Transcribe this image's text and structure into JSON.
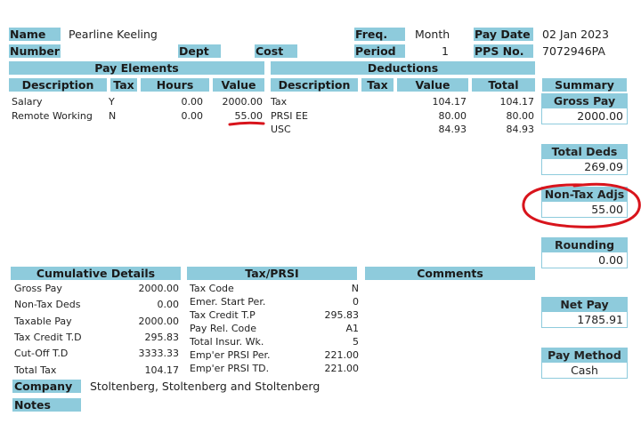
{
  "header": {
    "name_label": "Name",
    "name_value": "Pearline Keeling",
    "freq_label": "Freq.",
    "freq_value": "Month",
    "paydate_label": "Pay Date",
    "paydate_value": "02 Jan 2023",
    "number_label": "Number",
    "dept_label": "Dept",
    "cost_label": "Cost",
    "period_label": "Period",
    "period_value": "1",
    "pps_label": "PPS No.",
    "pps_value": "7072946PA"
  },
  "pay_elements": {
    "title": "Pay Elements",
    "columns": [
      "Description",
      "Tax",
      "Hours",
      "Value"
    ],
    "rows": [
      {
        "description": "Salary",
        "tax": "Y",
        "hours": "0.00",
        "value": "2000.00"
      },
      {
        "description": "Remote Working",
        "tax": "N",
        "hours": "0.00",
        "value": "55.00"
      }
    ]
  },
  "deductions": {
    "title": "Deductions",
    "columns": [
      "Description",
      "Tax",
      "Value",
      "Total"
    ],
    "rows": [
      {
        "description": "Tax",
        "value": "104.17",
        "total": "104.17"
      },
      {
        "description": "PRSI EE",
        "value": "80.00",
        "total": "80.00"
      },
      {
        "description": "USC",
        "value": "84.93",
        "total": "84.93"
      }
    ]
  },
  "summary": {
    "title": "Summary",
    "gross_pay_label": "Gross Pay",
    "gross_pay_value": "2000.00",
    "total_deds_label": "Total Deds",
    "total_deds_value": "269.09",
    "non_tax_adjs_label": "Non-Tax Adjs",
    "non_tax_adjs_value": "55.00",
    "rounding_label": "Rounding",
    "rounding_value": "0.00",
    "net_pay_label": "Net Pay",
    "net_pay_value": "1785.91",
    "pay_method_label": "Pay Method",
    "pay_method_value": "Cash"
  },
  "cumulative": {
    "title": "Cumulative Details",
    "rows": [
      {
        "label": "Gross Pay",
        "value": "2000.00"
      },
      {
        "label": "Non-Tax Deds",
        "value": "0.00"
      },
      {
        "label": "Taxable Pay",
        "value": "2000.00"
      },
      {
        "label": "Tax Credit T.D",
        "value": "295.83"
      },
      {
        "label": "Cut-Off T.D",
        "value": "3333.33"
      },
      {
        "label": "Total Tax",
        "value": "104.17"
      }
    ]
  },
  "tax_prsi": {
    "title": "Tax/PRSI",
    "rows": [
      {
        "label": "Tax Code",
        "value": "N"
      },
      {
        "label": "Emer. Start Per.",
        "value": "0"
      },
      {
        "label": "Tax Credit T.P",
        "value": "295.83"
      },
      {
        "label": "Pay Rel. Code",
        "value": "A1"
      },
      {
        "label": "Total Insur. Wk.",
        "value": "5"
      },
      {
        "label": "Emp'er PRSI Per.",
        "value": "221.00"
      },
      {
        "label": "Emp'er PRSI TD.",
        "value": "221.00"
      }
    ]
  },
  "comments": {
    "title": "Comments"
  },
  "company": {
    "label": "Company",
    "value": "Stoltenberg, Stoltenberg and Stoltenberg"
  },
  "notes": {
    "label": "Notes"
  },
  "annotation": {
    "color": "#d8141c"
  }
}
